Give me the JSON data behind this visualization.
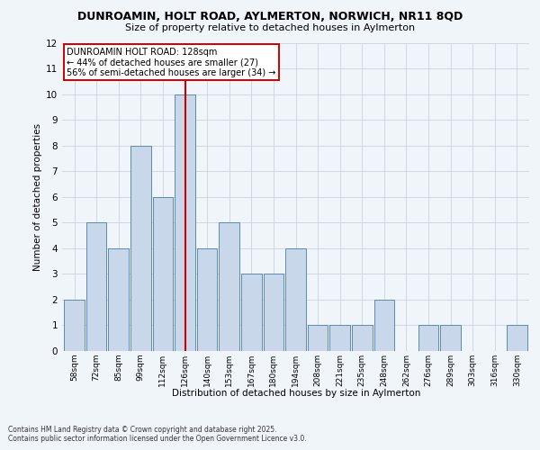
{
  "title_line1": "DUNROAMIN, HOLT ROAD, AYLMERTON, NORWICH, NR11 8QD",
  "title_line2": "Size of property relative to detached houses in Aylmerton",
  "xlabel": "Distribution of detached houses by size in Aylmerton",
  "ylabel": "Number of detached properties",
  "categories": [
    "58sqm",
    "72sqm",
    "85sqm",
    "99sqm",
    "112sqm",
    "126sqm",
    "140sqm",
    "153sqm",
    "167sqm",
    "180sqm",
    "194sqm",
    "208sqm",
    "221sqm",
    "235sqm",
    "248sqm",
    "262sqm",
    "276sqm",
    "289sqm",
    "303sqm",
    "316sqm",
    "330sqm"
  ],
  "values": [
    2,
    5,
    4,
    8,
    6,
    10,
    4,
    5,
    3,
    3,
    4,
    1,
    1,
    1,
    2,
    0,
    1,
    1,
    0,
    0,
    1
  ],
  "highlight_line_index": 5,
  "bar_color": "#c8d8ea",
  "bar_edge_color": "#5a8ab0",
  "highlight_line_color": "#cc0000",
  "annotation_text": "DUNROAMIN HOLT ROAD: 128sqm\n← 44% of detached houses are smaller (27)\n56% of semi-detached houses are larger (34) →",
  "annotation_box_facecolor": "#ffffff",
  "annotation_box_edgecolor": "#cc0000",
  "ylim": [
    0,
    12
  ],
  "yticks": [
    0,
    1,
    2,
    3,
    4,
    5,
    6,
    7,
    8,
    9,
    10,
    11,
    12
  ],
  "footer_line1": "Contains HM Land Registry data © Crown copyright and database right 2025.",
  "footer_line2": "Contains public sector information licensed under the Open Government Licence v3.0.",
  "fig_facecolor": "#f0f5fa",
  "grid_color": "#c8d4e0"
}
